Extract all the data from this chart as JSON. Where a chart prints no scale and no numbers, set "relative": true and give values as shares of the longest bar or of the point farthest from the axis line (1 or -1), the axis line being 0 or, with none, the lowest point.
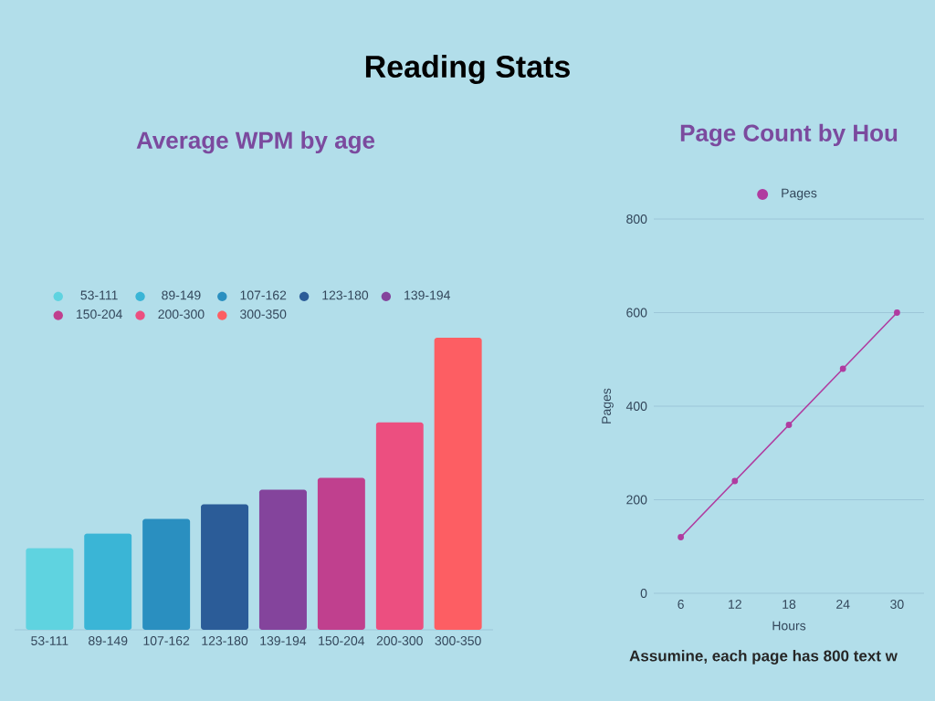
{
  "chart_data": [
    {
      "type": "other",
      "title": "Reading Stats"
    },
    {
      "type": "bar",
      "title": "Average WPM by age",
      "relative": true,
      "legend": "top",
      "categories": [
        "53-111",
        "89-149",
        "107-162",
        "123-180",
        "139-194",
        "150-204",
        "200-300",
        "300-350"
      ],
      "series": [
        {
          "name": "53-111",
          "color": "#5fd3e0",
          "values": [
            0.28,
            null,
            null,
            null,
            null,
            null,
            null,
            null
          ]
        },
        {
          "name": "89-149",
          "color": "#3ab5d6",
          "values": [
            null,
            0.33,
            null,
            null,
            null,
            null,
            null,
            null
          ]
        },
        {
          "name": "107-162",
          "color": "#2a8fc0",
          "values": [
            null,
            null,
            0.38,
            null,
            null,
            null,
            null,
            null
          ]
        },
        {
          "name": "123-180",
          "color": "#2b5c98",
          "values": [
            null,
            null,
            null,
            0.43,
            null,
            null,
            null,
            null
          ]
        },
        {
          "name": "139-194",
          "color": "#84449c",
          "values": [
            null,
            null,
            null,
            null,
            0.48,
            null,
            null,
            null
          ]
        },
        {
          "name": "150-204",
          "color": "#c0408e",
          "values": [
            null,
            null,
            null,
            null,
            null,
            0.52,
            null,
            null
          ]
        },
        {
          "name": "200-300",
          "color": "#ec4f80",
          "values": [
            null,
            null,
            null,
            null,
            null,
            null,
            0.71,
            null
          ]
        },
        {
          "name": "300-350",
          "color": "#fd5e63",
          "values": [
            null,
            null,
            null,
            null,
            null,
            null,
            null,
            1
          ]
        }
      ]
    },
    {
      "type": "line",
      "title": "Page Count by Hou",
      "xlabel": "Hours",
      "ylabel": "Pages",
      "grid": "y",
      "legend": "top",
      "marker": "circle",
      "x": [
        6,
        12,
        18,
        24,
        30
      ],
      "series": [
        {
          "name": "Pages",
          "color": "#b03ca0",
          "values": [
            120,
            240,
            360,
            480,
            600
          ]
        }
      ],
      "xlim": [
        3,
        33
      ],
      "xticks": [
        6,
        12,
        18,
        24,
        30
      ],
      "ylim": [
        0,
        800
      ],
      "yticks": [
        0,
        200,
        400,
        600,
        800
      ],
      "annotations": [
        "Assumine, each page has 800 text w"
      ]
    }
  ]
}
